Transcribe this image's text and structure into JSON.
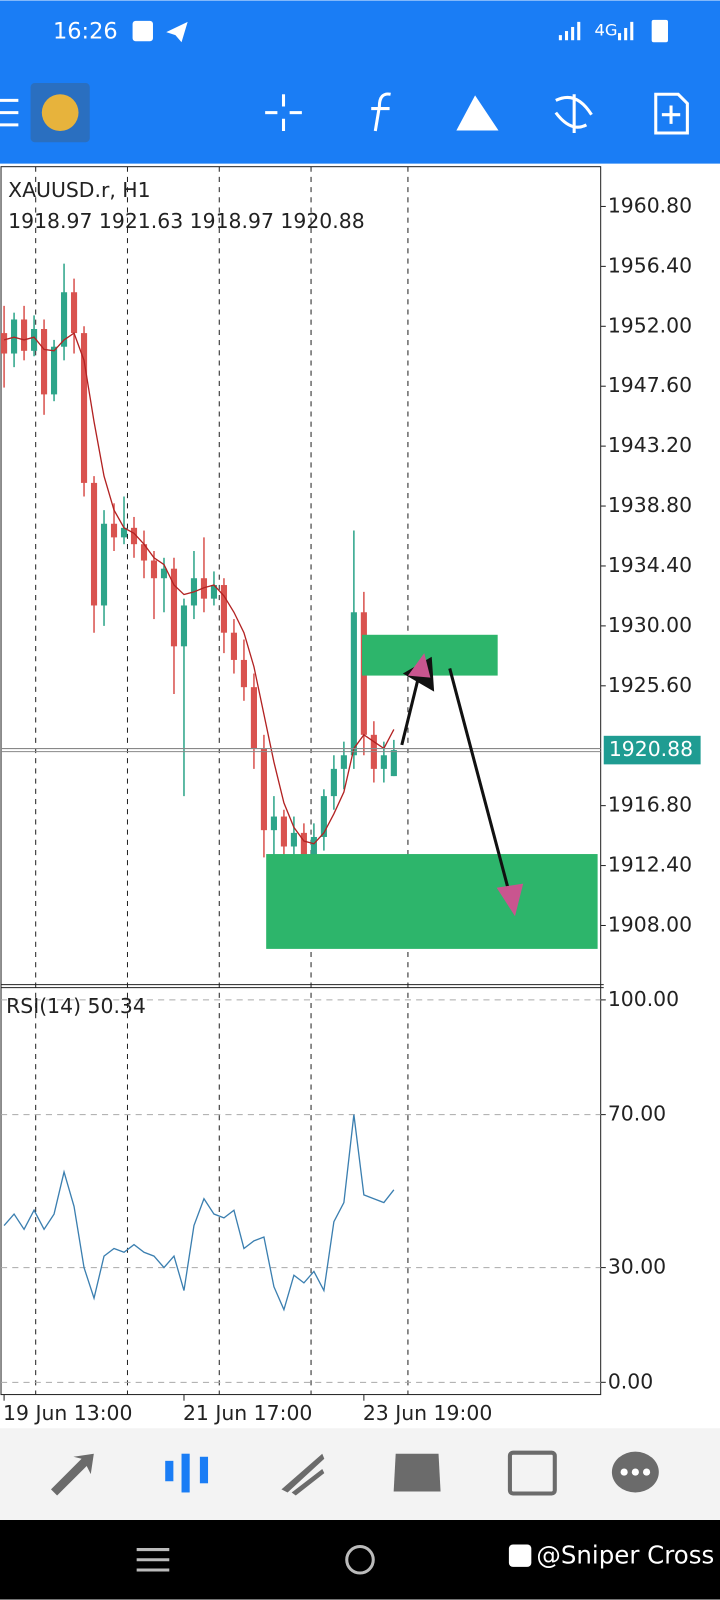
{
  "status_bar": {
    "time": "16:26",
    "network": "4G"
  },
  "chart_data": [
    {
      "type": "candlestick",
      "title": "XAUUSD.r, H1",
      "categories": [
        "19 Jun 13:00",
        null,
        null,
        null,
        null,
        null,
        null,
        null,
        null,
        null,
        null,
        null,
        null,
        null,
        null,
        null,
        null,
        null,
        "21 Jun 17:00",
        null,
        null,
        null,
        null,
        null,
        null,
        null,
        null,
        null,
        null,
        null,
        null,
        null,
        null,
        null,
        null,
        null,
        "23 Jun 19:00",
        null,
        null,
        null
      ],
      "open": [
        1951.5,
        1950.0,
        1952.5,
        1950.2,
        1951.8,
        1947.0,
        1950.5,
        1954.5,
        1951.5,
        1940.5,
        1931.5,
        1937.5,
        1936.5,
        1937.2,
        1936.0,
        1934.8,
        1933.5,
        1934.2,
        1928.5,
        1931.5,
        1933.5,
        1932.0,
        1933.0,
        1929.5,
        1927.5,
        1925.5,
        1921.0,
        1915.0,
        1916.0,
        1913.8,
        1914.8,
        1912.5,
        1914.5,
        1917.5,
        1919.5,
        1920.5,
        1931.0,
        1922.0,
        1919.5,
        1918.97
      ],
      "high": [
        1953.5,
        1953.0,
        1953.5,
        1952.8,
        1952.5,
        1951.0,
        1956.6,
        1955.5,
        1952.0,
        1941.0,
        1938.5,
        1939.0,
        1939.5,
        1938.0,
        1937.0,
        1935.5,
        1935.0,
        1935.0,
        1932.0,
        1935.5,
        1936.5,
        1934.0,
        1933.5,
        1930.5,
        1929.0,
        1926.5,
        1922.0,
        1917.5,
        1916.5,
        1916.0,
        1915.5,
        1915.5,
        1918.0,
        1920.5,
        1921.5,
        1937.0,
        1932.5,
        1923.0,
        1921.5,
        1921.63
      ],
      "low": [
        1947.5,
        1949.0,
        1949.5,
        1949.8,
        1945.5,
        1946.5,
        1949.5,
        1950.0,
        1939.5,
        1929.5,
        1930.0,
        1935.5,
        1936.0,
        1935.0,
        1933.5,
        1930.5,
        1931.0,
        1925.0,
        1917.5,
        1930.5,
        1931.0,
        1931.5,
        1928.0,
        1926.5,
        1924.5,
        1919.5,
        1913.0,
        1913.0,
        1912.8,
        1913.0,
        1910.2,
        1911.5,
        1913.5,
        1916.5,
        1918.0,
        1919.5,
        1920.5,
        1918.5,
        1918.5,
        1918.97
      ],
      "close": [
        1950.0,
        1952.5,
        1950.2,
        1951.8,
        1947.0,
        1950.5,
        1954.5,
        1951.5,
        1940.5,
        1931.5,
        1937.5,
        1936.5,
        1937.2,
        1936.0,
        1934.8,
        1933.5,
        1934.2,
        1928.5,
        1931.5,
        1933.5,
        1932.0,
        1933.0,
        1929.5,
        1927.5,
        1925.5,
        1921.0,
        1915.0,
        1916.0,
        1913.8,
        1914.8,
        1912.5,
        1914.5,
        1917.5,
        1919.5,
        1920.5,
        1931.0,
        1922.0,
        1919.5,
        1920.5,
        1920.88
      ],
      "up_color": "#2ea58a",
      "down_color": "#d9534f",
      "ma": {
        "color": "#b22222",
        "values": [
          1951.0,
          1951.2,
          1951.0,
          1951.2,
          1950.3,
          1950.2,
          1951.0,
          1951.5,
          1949.5,
          1945.0,
          1941.0,
          1938.5,
          1937.2,
          1936.8,
          1936.0,
          1935.0,
          1934.5,
          1933.0,
          1932.3,
          1932.5,
          1932.8,
          1933.0,
          1932.2,
          1931.0,
          1929.5,
          1927.0,
          1923.5,
          1920.0,
          1917.0,
          1915.2,
          1914.2,
          1914.0,
          1914.8,
          1916.2,
          1917.8,
          1921.0,
          1922.0,
          1921.5,
          1921.0,
          1922.4
        ]
      },
      "ylim": [
        1903.66,
        1963.72
      ],
      "yticks": [
        {
          "value": 1960.8,
          "label": "1960.80"
        },
        {
          "value": 1956.4,
          "label": "1956.40"
        },
        {
          "value": 1952,
          "label": "1952.00"
        },
        {
          "value": 1947.6,
          "label": "1947.60"
        },
        {
          "value": 1943.2,
          "label": "1943.20"
        },
        {
          "value": 1938.8,
          "label": "1938.80"
        },
        {
          "value": 1934.4,
          "label": "1934.40"
        },
        {
          "value": 1930,
          "label": "1930.00"
        },
        {
          "value": 1925.6,
          "label": "1925.60"
        },
        {
          "value": 1916.8,
          "label": "1916.80"
        },
        {
          "value": 1912.4,
          "label": "1912.40"
        },
        {
          "value": 1908,
          "label": "1908.00"
        }
      ],
      "grid": false,
      "price_label_color": "#1f9c92"
    },
    {
      "type": "line",
      "title": "RSI(14)",
      "series": [
        {
          "color": "#3b7fb0",
          "values": [
            41,
            44,
            40,
            45,
            40,
            44,
            55,
            46,
            30,
            22,
            33,
            35,
            34,
            36,
            34,
            33,
            30,
            33,
            24,
            41,
            48,
            44,
            43,
            45,
            35,
            37,
            38,
            25,
            19,
            28,
            26,
            29,
            24,
            42,
            47,
            70,
            49,
            48,
            47,
            50.34
          ]
        }
      ],
      "ylim": [
        -3.2,
        103.2
      ],
      "yticks": [
        {
          "value": 100,
          "label": "100.00"
        },
        {
          "value": 70,
          "label": "70.00"
        },
        {
          "value": 30,
          "label": "30.00"
        },
        {
          "value": 0,
          "label": "0.00"
        }
      ],
      "grid": true
    }
  ],
  "watermark": "@Sniper Cross"
}
